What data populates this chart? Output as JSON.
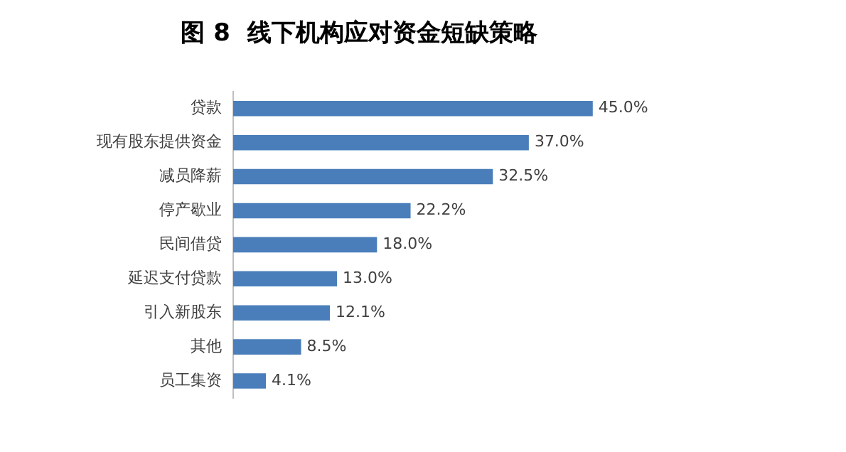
{
  "chart_data": {
    "type": "bar",
    "orientation": "horizontal",
    "title": "图 8  线下机构应对资金短缺策略",
    "categories": [
      "贷款",
      "现有股东提供资金",
      "减员降薪",
      "停产歇业",
      "民间借贷",
      "延迟支付贷款",
      "引入新股东",
      "其他",
      "员工集资"
    ],
    "values": [
      45.0,
      37.0,
      32.5,
      22.2,
      18.0,
      13.0,
      12.1,
      8.5,
      4.1
    ],
    "value_labels": [
      "45.0%",
      "37.0%",
      "32.5%",
      "22.2%",
      "18.0%",
      "13.0%",
      "12.1%",
      "8.5%",
      "4.1%"
    ],
    "color": "#4a7ebb",
    "grid": false,
    "legend": false
  }
}
